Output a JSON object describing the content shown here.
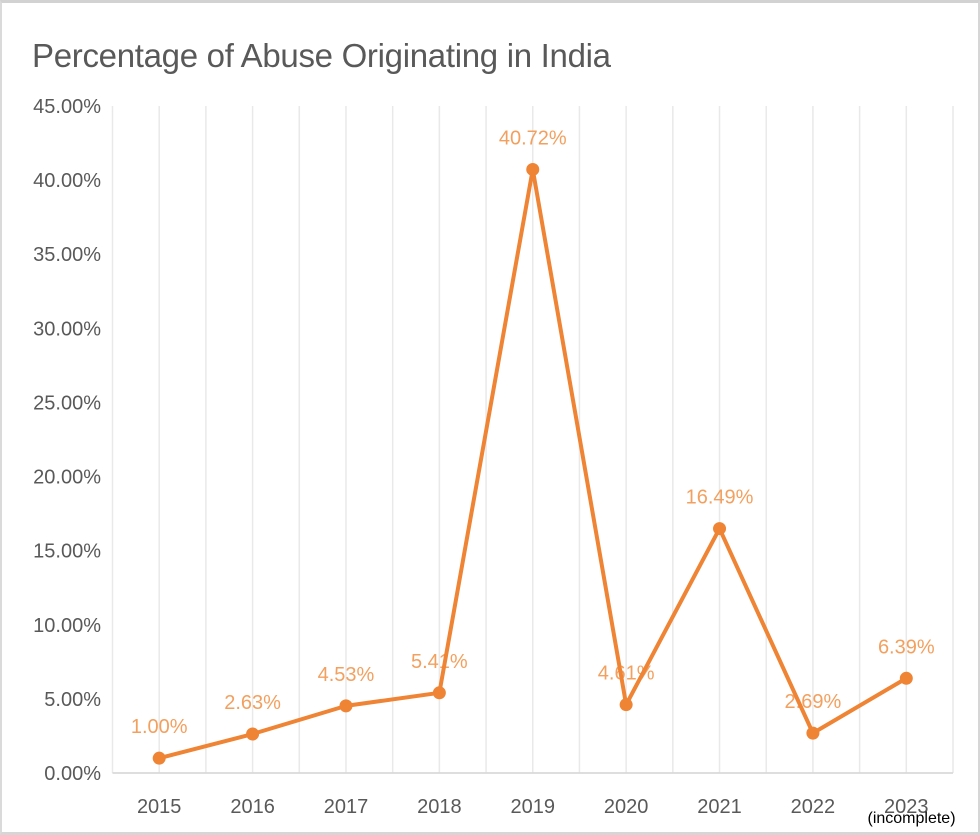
{
  "chart": {
    "title": "Percentage of Abuse Originating in India",
    "axis_note": "(incomplete)"
  },
  "chart_data": {
    "type": "line",
    "title": "Percentage of Abuse Originating in India",
    "categories": [
      "2015",
      "2016",
      "2017",
      "2018",
      "2019",
      "2020",
      "2021",
      "2022",
      "2023"
    ],
    "series": [
      {
        "name": "Percentage of Abuse Originating in India",
        "values": [
          1.0,
          2.63,
          4.53,
          5.41,
          40.72,
          4.61,
          16.49,
          2.69,
          6.39
        ]
      }
    ],
    "data_labels": [
      "1.00%",
      "2.63%",
      "4.53%",
      "5.41%",
      "40.72%",
      "4.61%",
      "16.49%",
      "2.69%",
      "6.39%"
    ],
    "y_ticks": [
      {
        "value": 0,
        "label": "0.00%"
      },
      {
        "value": 5,
        "label": "5.00%"
      },
      {
        "value": 10,
        "label": "10.00%"
      },
      {
        "value": 15,
        "label": "15.00%"
      },
      {
        "value": 20,
        "label": "20.00%"
      },
      {
        "value": 25,
        "label": "25.00%"
      },
      {
        "value": 30,
        "label": "30.00%"
      },
      {
        "value": 35,
        "label": "35.00%"
      },
      {
        "value": 40,
        "label": "40.00%"
      },
      {
        "value": 45,
        "label": "45.00%"
      }
    ],
    "ylim": [
      0,
      45
    ],
    "xlabel": "",
    "ylabel": "",
    "x_note": "(incomplete)",
    "x_note_category": "2023",
    "legend": "none",
    "grid": "vertical-light-half-category-spacing",
    "colors": {
      "line": "#EE8434",
      "marker": "#EE8434",
      "data_label": "#F3A05F",
      "axis_text": "#595959",
      "title_text": "#595959",
      "gridline": "#e9e9e9",
      "axis_line": "#d9d9d9",
      "note_text": "#000000",
      "background": "#ffffff"
    }
  }
}
